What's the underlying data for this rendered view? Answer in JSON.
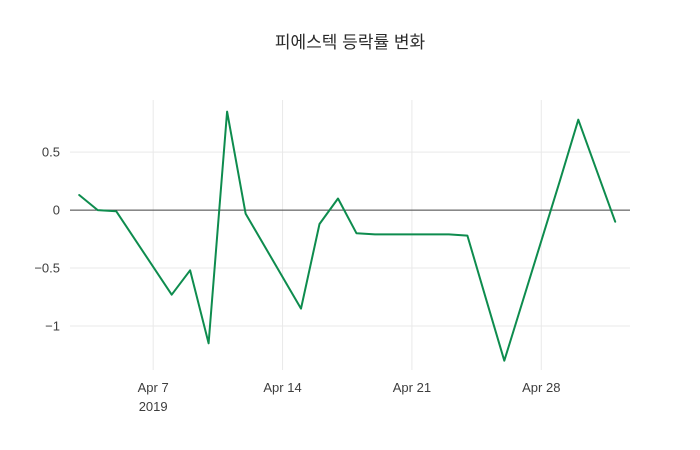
{
  "chart_data": {
    "type": "line",
    "title": "피에스텍 등락률 변화",
    "xlabel": "",
    "ylabel": "",
    "series": [
      {
        "name": "등락률",
        "x_dates": [
          "2019-04-03",
          "2019-04-04",
          "2019-04-05",
          "2019-04-08",
          "2019-04-09",
          "2019-04-10",
          "2019-04-11",
          "2019-04-12",
          "2019-04-15",
          "2019-04-16",
          "2019-04-17",
          "2019-04-18",
          "2019-04-19",
          "2019-04-22",
          "2019-04-23",
          "2019-04-24",
          "2019-04-25",
          "2019-04-26",
          "2019-04-29",
          "2019-04-30",
          "2019-05-02"
        ],
        "x_days": [
          3,
          4,
          5,
          8,
          9,
          10,
          11,
          12,
          15,
          16,
          17,
          18,
          19,
          22,
          23,
          24,
          25,
          26,
          29,
          30,
          32
        ],
        "y": [
          0.13,
          0.0,
          -0.01,
          -0.73,
          -0.52,
          -1.15,
          0.85,
          -0.03,
          -0.85,
          -0.12,
          0.1,
          -0.2,
          -0.21,
          -0.21,
          -0.21,
          -0.22,
          -0.76,
          -1.3,
          0.25,
          0.78,
          -0.1
        ]
      }
    ],
    "x_ticks": [
      {
        "day": 7,
        "label": "Apr 7",
        "sub_label": "2019"
      },
      {
        "day": 14,
        "label": "Apr 14",
        "sub_label": ""
      },
      {
        "day": 21,
        "label": "Apr 21",
        "sub_label": ""
      },
      {
        "day": 28,
        "label": "Apr 28",
        "sub_label": ""
      }
    ],
    "y_ticks": [
      {
        "value": 0.5,
        "label": "0.5"
      },
      {
        "value": 0,
        "label": "0"
      },
      {
        "value": -0.5,
        "label": "−0.5"
      },
      {
        "value": -1,
        "label": "−1"
      }
    ],
    "x_domain_days": [
      2.5,
      32.8
    ],
    "y_domain": [
      -1.38,
      0.95
    ],
    "zero_line": true,
    "grid_on": true,
    "legend_position": "none",
    "colors": {
      "line": "#0e8c4e",
      "grid": "#e9e9e9",
      "zero_line": "#444444",
      "tick_text": "#3d3d3d",
      "title_text": "#2a2a2a",
      "background": "#ffffff"
    }
  }
}
